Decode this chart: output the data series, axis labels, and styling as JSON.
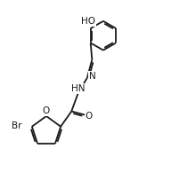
{
  "background": "#ffffff",
  "line_color": "#1a1a1a",
  "line_width": 1.3,
  "font_size": 7.5,
  "figsize": [
    2.2,
    1.94
  ],
  "dpi": 100,
  "xlim": [
    0,
    11
  ],
  "ylim": [
    0,
    9.5
  ]
}
